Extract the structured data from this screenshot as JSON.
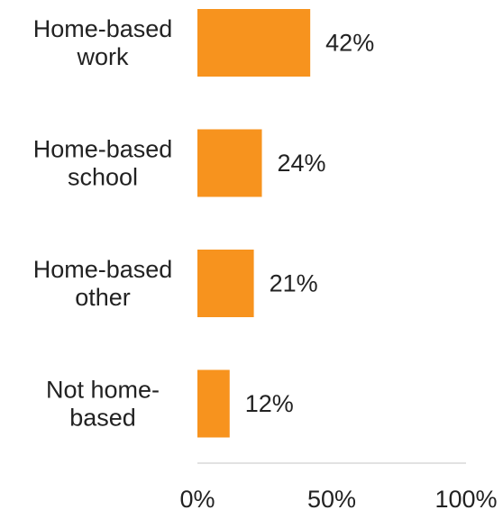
{
  "chart_data": {
    "type": "bar",
    "orientation": "horizontal",
    "categories": [
      [
        "Home-based",
        "work"
      ],
      [
        "Home-based",
        "school"
      ],
      [
        "Home-based",
        "other"
      ],
      [
        "Not home-",
        "based"
      ]
    ],
    "values": [
      42,
      24,
      21,
      12
    ],
    "value_labels": [
      "42%",
      "24%",
      "21%",
      "12%"
    ],
    "xlim": [
      0,
      100
    ],
    "x_ticks": [
      0,
      50,
      100
    ],
    "x_tick_labels": [
      "0%",
      "50%",
      "100%"
    ],
    "title": "",
    "xlabel": "",
    "ylabel": "",
    "grid": false,
    "legend": "none",
    "bar_color": "#F7931E",
    "axis_color": "#D9D9D9",
    "text_color": "#222222"
  }
}
